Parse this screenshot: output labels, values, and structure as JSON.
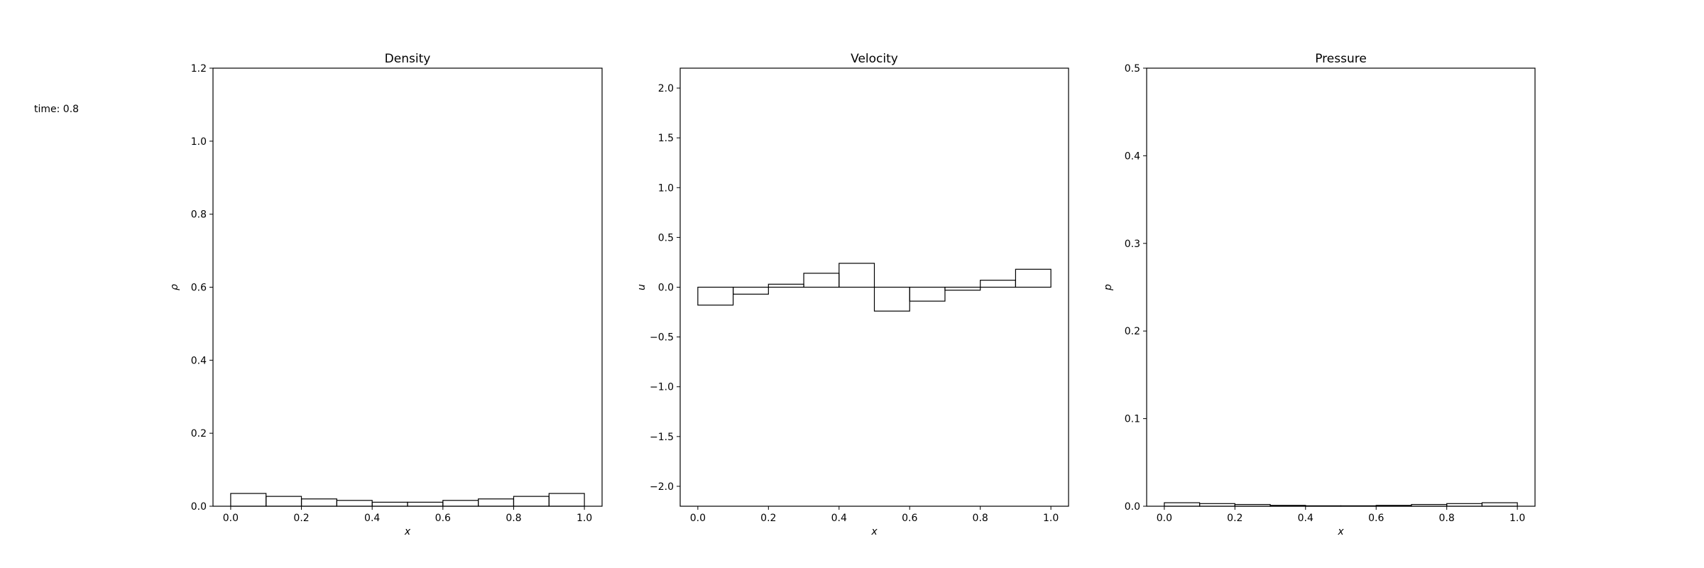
{
  "time_label": "time: 0.8",
  "chart_data": [
    {
      "type": "bar",
      "title": "Density",
      "xlabel": "x",
      "ylabel": "ρ",
      "xlim": [
        -0.05,
        1.05
      ],
      "ylim": [
        0.0,
        1.2
      ],
      "xticks": [
        "0.0",
        "0.2",
        "0.4",
        "0.6",
        "0.8",
        "1.0"
      ],
      "yticks": [
        "0.0",
        "0.2",
        "0.4",
        "0.6",
        "0.8",
        "1.0",
        "1.2"
      ],
      "bin_edges": [
        0.0,
        0.1,
        0.2,
        0.3,
        0.4,
        0.5,
        0.6,
        0.7,
        0.8,
        0.9,
        1.0
      ],
      "values": [
        0.035,
        0.027,
        0.02,
        0.016,
        0.011,
        0.011,
        0.016,
        0.02,
        0.027,
        0.035
      ]
    },
    {
      "type": "bar",
      "title": "Velocity",
      "xlabel": "x",
      "ylabel": "u",
      "xlim": [
        -0.05,
        1.05
      ],
      "ylim": [
        -2.2,
        2.2
      ],
      "xticks": [
        "0.0",
        "0.2",
        "0.4",
        "0.6",
        "0.8",
        "1.0"
      ],
      "yticks": [
        "−2.0",
        "−1.5",
        "−1.0",
        "−0.5",
        "0.0",
        "0.5",
        "1.0",
        "1.5",
        "2.0"
      ],
      "bin_edges": [
        0.0,
        0.1,
        0.2,
        0.3,
        0.4,
        0.5,
        0.6,
        0.7,
        0.8,
        0.9,
        1.0
      ],
      "values": [
        -0.18,
        -0.07,
        0.03,
        0.14,
        0.24,
        -0.24,
        -0.14,
        -0.03,
        0.07,
        0.18
      ]
    },
    {
      "type": "bar",
      "title": "Pressure",
      "xlabel": "x",
      "ylabel": "p",
      "xlim": [
        -0.05,
        1.05
      ],
      "ylim": [
        0.0,
        0.5
      ],
      "xticks": [
        "0.0",
        "0.2",
        "0.4",
        "0.6",
        "0.8",
        "1.0"
      ],
      "yticks": [
        "0.0",
        "0.1",
        "0.2",
        "0.3",
        "0.4",
        "0.5"
      ],
      "bin_edges": [
        0.0,
        0.1,
        0.2,
        0.3,
        0.4,
        0.5,
        0.6,
        0.7,
        0.8,
        0.9,
        1.0
      ],
      "values": [
        0.004,
        0.003,
        0.002,
        0.001,
        0.0005,
        0.0005,
        0.001,
        0.002,
        0.003,
        0.004
      ]
    }
  ]
}
